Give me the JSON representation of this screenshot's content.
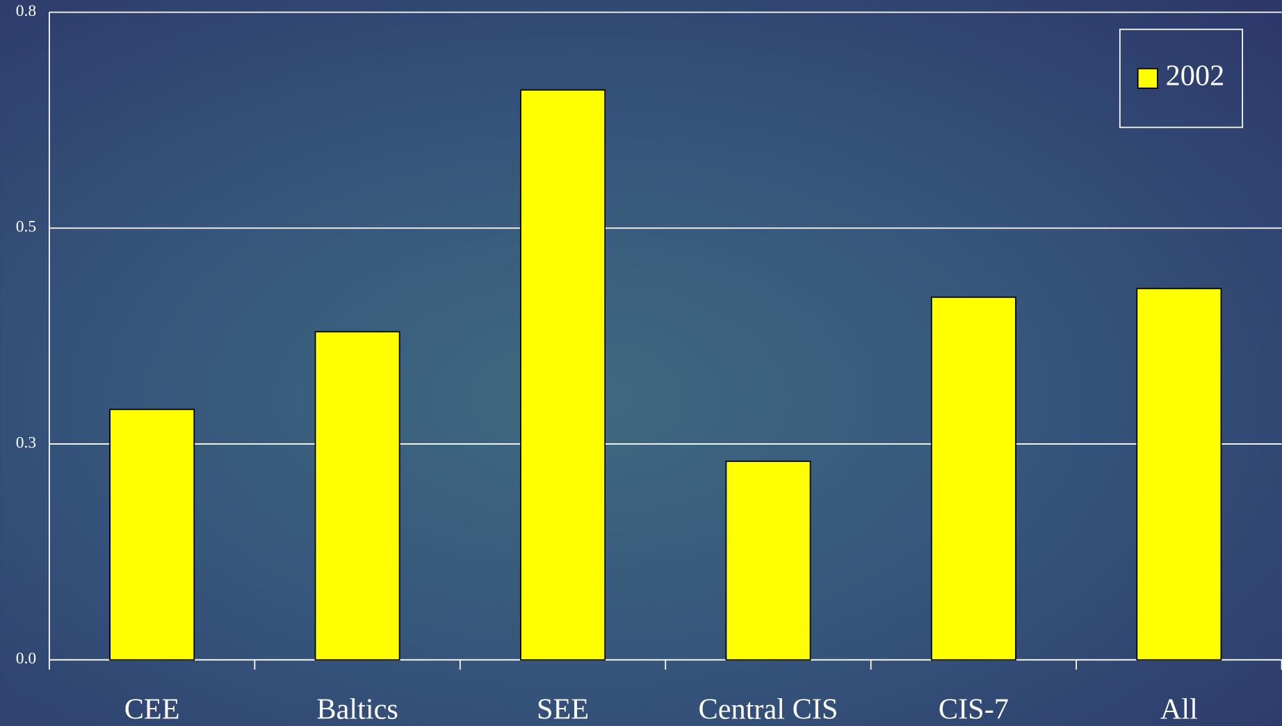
{
  "chart_data": {
    "type": "bar",
    "categories": [
      "CEE",
      "Baltics",
      "SEE",
      "Central CIS",
      "CIS-7",
      "All"
    ],
    "series": [
      {
        "name": "2002",
        "color": "#ffff00",
        "values": [
          0.29,
          0.38,
          0.66,
          0.23,
          0.42,
          0.43
        ]
      }
    ],
    "ylim": [
      0,
      0.75
    ],
    "yticks": [
      {
        "value": 0,
        "label": "0.0"
      },
      {
        "value": 0.25,
        "label": "0.3"
      },
      0.5,
      {
        "value": 0.75,
        "label": "0.8"
      }
    ],
    "grid": true,
    "legend": "top-right"
  }
}
